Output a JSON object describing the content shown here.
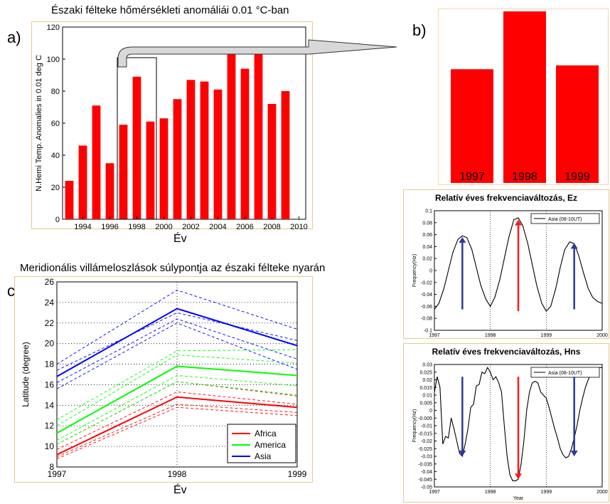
{
  "labels": {
    "a": "a)",
    "b": "b)",
    "c": "c)"
  },
  "panel_a": {
    "title": "Északi félteke hőmérsékleti anomáliái 0.01 °C-ban",
    "xcaption": "Év"
  },
  "panel_c": {
    "title": "Meridionális villámeloszlások súlypontja az északi félteke nyarán",
    "xcaption": "Év"
  },
  "colors": {
    "bar": "#ff0000",
    "asia": "#0000ff",
    "america": "#00ff00",
    "africa": "#ff0000",
    "arrow_blue": "#2b3a9a",
    "arrow_red": "#ff1a1a",
    "frame": "#e6c890"
  },
  "chart_data": [
    {
      "id": "a",
      "type": "bar",
      "ylabel": "N.Hemi Temp. Anomalies in 0.01 deg C",
      "ylim": [
        0,
        120
      ],
      "yticks": [
        0,
        20,
        40,
        60,
        80,
        100,
        120
      ],
      "xticks": [
        "1994",
        "1996",
        "1998",
        "2000",
        "2002",
        "2004",
        "2006",
        "2008",
        "2010"
      ],
      "categories": [
        "1993",
        "1994",
        "1995",
        "1996",
        "1997",
        "1998",
        "1999",
        "2000",
        "2001",
        "2002",
        "2003",
        "2004",
        "2005",
        "2006",
        "2007",
        "2008",
        "2009",
        "2010"
      ],
      "values": [
        24,
        46,
        71,
        35,
        59,
        89,
        61,
        63,
        75,
        87,
        86,
        81,
        103,
        94,
        103,
        72,
        80,
        0
      ],
      "grid": false
    },
    {
      "id": "b",
      "type": "bar",
      "categories": [
        "1997",
        "1998",
        "1999"
      ],
      "values": [
        59,
        89,
        61
      ]
    },
    {
      "id": "c",
      "type": "line",
      "ylabel": "Latitude (degree)",
      "x": [
        1997,
        1998,
        1999
      ],
      "xticks": [
        "1997",
        "1998",
        "1999"
      ],
      "ylim": [
        8,
        26
      ],
      "yticks": [
        8,
        10,
        12,
        14,
        16,
        18,
        20,
        22,
        24,
        26
      ],
      "grid": true,
      "legend_position": "bottom-right",
      "series": [
        {
          "name": "Africa",
          "color": "#ff0000",
          "values": [
            9.2,
            14.8,
            13.8
          ]
        },
        {
          "name": "America",
          "color": "#00ff00",
          "values": [
            11.3,
            17.8,
            16.9
          ]
        },
        {
          "name": "Asia",
          "color": "#0000ff",
          "values": [
            16.8,
            23.4,
            19.8
          ]
        }
      ],
      "dashed": [
        {
          "color": "#ff0000",
          "values": [
            10.2,
            16.3,
            14.9
          ]
        },
        {
          "color": "#ff0000",
          "values": [
            9.7,
            15.3,
            14.1
          ]
        },
        {
          "color": "#ff0000",
          "values": [
            9.0,
            14.1,
            13.3
          ]
        },
        {
          "color": "#ff0000",
          "values": [
            8.8,
            13.8,
            13.0
          ]
        },
        {
          "color": "#00ff00",
          "values": [
            12.6,
            19.3,
            19.4
          ]
        },
        {
          "color": "#00ff00",
          "values": [
            12.0,
            18.9,
            18.1
          ]
        },
        {
          "color": "#00ff00",
          "values": [
            10.6,
            16.9,
            15.9
          ]
        },
        {
          "color": "#00ff00",
          "values": [
            10.2,
            16.3,
            15.0
          ]
        },
        {
          "color": "#0000ff",
          "values": [
            18.0,
            25.2,
            21.4
          ]
        },
        {
          "color": "#0000ff",
          "values": [
            17.4,
            23.0,
            20.3
          ]
        },
        {
          "color": "#0000ff",
          "values": [
            16.2,
            22.4,
            18.5
          ]
        },
        {
          "color": "#0000ff",
          "values": [
            15.6,
            22.0,
            17.5
          ]
        }
      ]
    },
    {
      "id": "d",
      "type": "line",
      "title": "Relatív éves frekvenciaváltozás, Ez",
      "ylabel": "Frequency(Hz)",
      "xlim": [
        1997,
        2000
      ],
      "ylim": [
        -0.1,
        0.1
      ],
      "xticks": [
        "1997",
        "1998",
        "1999",
        "2000"
      ],
      "yticks": [
        "-0.1",
        "-0.08",
        "-0.06",
        "-0.04",
        "-0.02",
        "0",
        "0.02",
        "0.04",
        "0.06",
        "0.08",
        "0.1"
      ],
      "series": [
        {
          "name": "Asia (08-10UT)",
          "color": "#000000",
          "x": [
            1997,
            1997.08,
            1997.17,
            1997.25,
            1997.33,
            1997.42,
            1997.5,
            1997.58,
            1997.67,
            1997.75,
            1997.83,
            1997.92,
            1998,
            1998.08,
            1998.17,
            1998.25,
            1998.33,
            1998.42,
            1998.5,
            1998.58,
            1998.67,
            1998.75,
            1998.83,
            1998.92,
            1999,
            1999.08,
            1999.17,
            1999.25,
            1999.33,
            1999.42,
            1999.5,
            1999.58,
            1999.67,
            1999.75,
            1999.83,
            1999.92,
            2000
          ],
          "values": [
            -0.065,
            -0.055,
            -0.03,
            0.0,
            0.03,
            0.052,
            0.058,
            0.055,
            0.035,
            0.005,
            -0.025,
            -0.048,
            -0.06,
            -0.045,
            -0.015,
            0.02,
            0.055,
            0.085,
            0.088,
            0.075,
            0.045,
            0.01,
            -0.025,
            -0.055,
            -0.068,
            -0.06,
            -0.03,
            0.005,
            0.035,
            0.048,
            0.045,
            0.025,
            -0.005,
            -0.03,
            -0.045,
            -0.052,
            -0.055
          ]
        }
      ],
      "arrows": [
        {
          "x": 1997.5,
          "from": -0.065,
          "to": 0.056,
          "color": "#2b3a9a"
        },
        {
          "x": 1998.5,
          "from": -0.068,
          "to": 0.085,
          "color": "#ff1a1a"
        },
        {
          "x": 1999.5,
          "from": -0.065,
          "to": 0.046,
          "color": "#2b3a9a"
        }
      ]
    },
    {
      "id": "e",
      "type": "line",
      "title": "Relatív éves frekvenciaváltozás, Hns",
      "xlabel": "Year",
      "ylabel": "Frequency(Hz)",
      "xlim": [
        1997,
        2000
      ],
      "ylim": [
        -0.05,
        0.03
      ],
      "xticks": [
        "1997",
        "1998",
        "1999",
        "2000"
      ],
      "yticks": [
        "-0.05",
        "-0.045",
        "-0.04",
        "-0.035",
        "-0.03",
        "-0.025",
        "-0.02",
        "-0.015",
        "-0.01",
        "-0.005",
        "0",
        "0.005",
        "0.01",
        "0.015",
        "0.02",
        "0.025",
        "0.03"
      ],
      "series": [
        {
          "name": "Asia (08-10UT)",
          "color": "#000000",
          "x": [
            1997,
            1997.05,
            1997.1,
            1997.15,
            1997.2,
            1997.25,
            1997.3,
            1997.35,
            1997.4,
            1997.45,
            1997.5,
            1997.55,
            1997.6,
            1997.65,
            1997.7,
            1997.75,
            1997.8,
            1997.85,
            1997.9,
            1997.95,
            1998,
            1998.05,
            1998.1,
            1998.15,
            1998.2,
            1998.25,
            1998.3,
            1998.35,
            1998.4,
            1998.45,
            1998.5,
            1998.55,
            1998.6,
            1998.65,
            1998.7,
            1998.75,
            1998.8,
            1998.85,
            1998.9,
            1998.95,
            1999,
            1999.05,
            1999.1,
            1999.15,
            1999.2,
            1999.25,
            1999.3,
            1999.35,
            1999.4,
            1999.45,
            1999.5,
            1999.55,
            1999.6,
            1999.65,
            1999.7,
            1999.75,
            1999.8,
            1999.85,
            1999.9,
            1999.95,
            2000
          ],
          "values": [
            0.012,
            0.022,
            0.015,
            -0.022,
            -0.017,
            -0.018,
            -0.005,
            -0.012,
            -0.02,
            -0.028,
            -0.03,
            -0.022,
            -0.012,
            0.002,
            0.004,
            0.016,
            0.017,
            0.025,
            0.024,
            0.028,
            0.025,
            0.02,
            0.022,
            0.018,
            0.012,
            -0.01,
            -0.03,
            -0.042,
            -0.046,
            -0.046,
            -0.045,
            -0.035,
            -0.02,
            0.0,
            0.012,
            0.018,
            0.019,
            0.018,
            0.012,
            0.01,
            0.008,
            0.002,
            -0.005,
            -0.012,
            -0.018,
            -0.025,
            -0.029,
            -0.031,
            -0.03,
            -0.025,
            -0.018,
            -0.01,
            0.0,
            0.008,
            0.015,
            0.02,
            0.024,
            0.026,
            0.027,
            0.028,
            0.028
          ]
        }
      ],
      "arrows": [
        {
          "x": 1997.5,
          "from": 0.022,
          "to": -0.03,
          "color": "#2b3a9a"
        },
        {
          "x": 1998.5,
          "from": 0.022,
          "to": -0.045,
          "color": "#ff1a1a"
        },
        {
          "x": 1999.5,
          "from": 0.022,
          "to": -0.03,
          "color": "#2b3a9a"
        }
      ]
    }
  ]
}
